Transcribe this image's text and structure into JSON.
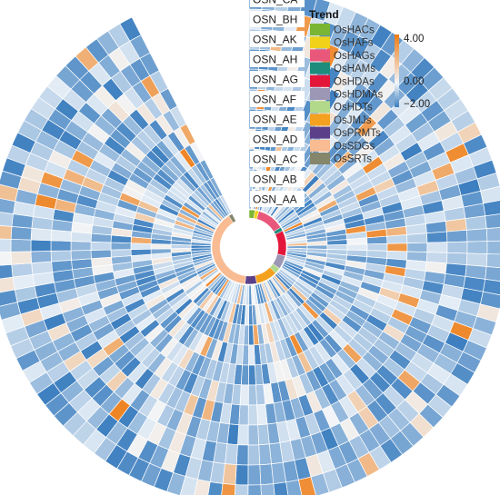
{
  "chart_data": {
    "type": "heatmap",
    "layout": "circular",
    "title": "",
    "rings": [
      "OSN_AA",
      "OSN_AB",
      "OSN_AC",
      "OSN_AD",
      "OSN_AE",
      "OSN_AF",
      "OSN_AG",
      "OSN_AH",
      "OSN_AK",
      "OSN_BH",
      "OSN_CA"
    ],
    "color_scale": {
      "min": -2.0,
      "mid": 0.0,
      "max": 4.0,
      "tick_labels": [
        "4.00",
        "0.00",
        "−2.00"
      ],
      "colors": [
        "#3d7fc0",
        "#f2f6fa",
        "#ee7b12"
      ]
    },
    "group_legend": {
      "title": "Trend",
      "placement": "top-right",
      "items": [
        {
          "name": "OsHACs",
          "color": "#7bb534",
          "count": 3
        },
        {
          "name": "OsHAFs",
          "color": "#f0d21a",
          "count": 2
        },
        {
          "name": "OsHAGs",
          "color": "#e9587a",
          "count": 14
        },
        {
          "name": "OsHAMs",
          "color": "#1e8c7c",
          "count": 2
        },
        {
          "name": "OsHDAs",
          "color": "#e4173b",
          "count": 13
        },
        {
          "name": "OsHDMAs",
          "color": "#9d97b6",
          "count": 7
        },
        {
          "name": "OsHDTs",
          "color": "#b2d88a",
          "count": 3
        },
        {
          "name": "OsJMJs",
          "color": "#f3a11f",
          "count": 11
        },
        {
          "name": "OsPRMTs",
          "color": "#5b4089",
          "count": 6
        },
        {
          "name": "OsSDGs",
          "color": "#f9bb92",
          "count": 46
        },
        {
          "name": "OsSRTs",
          "color": "#85866a",
          "count": 2
        }
      ]
    }
  }
}
